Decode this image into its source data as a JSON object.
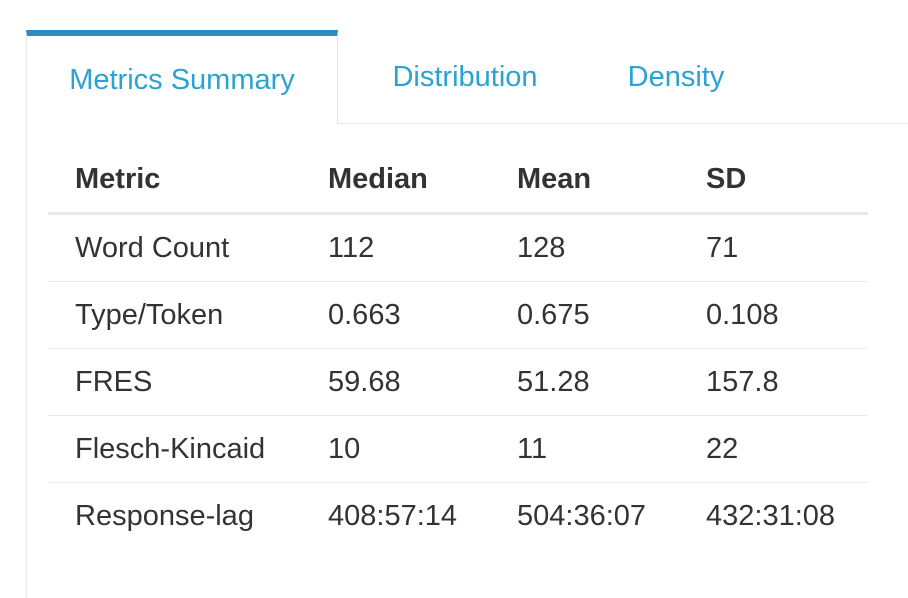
{
  "tabs": [
    {
      "label": "Metrics Summary",
      "active": true
    },
    {
      "label": "Distribution",
      "active": false
    },
    {
      "label": "Density",
      "active": false
    }
  ],
  "table": {
    "headers": [
      "Metric",
      "Median",
      "Mean",
      "SD"
    ],
    "rows": [
      [
        "Word Count",
        "112",
        "128",
        "71"
      ],
      [
        "Type/Token",
        "0.663",
        "0.675",
        "0.108"
      ],
      [
        "FRES",
        "59.68",
        "51.28",
        "157.8"
      ],
      [
        "Flesch-Kincaid",
        "10",
        "11",
        "22"
      ],
      [
        "Response-lag",
        "408:57:14",
        "504:36:07",
        "432:31:08"
      ]
    ]
  },
  "colors": {
    "accent": "#2b8cbf",
    "tab_text": "#2aa3d3",
    "text": "#333333"
  }
}
